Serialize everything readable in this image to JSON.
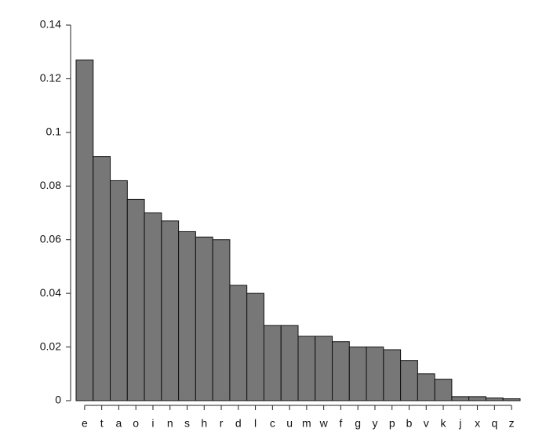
{
  "chart_data": {
    "type": "bar",
    "categories": [
      "e",
      "t",
      "a",
      "o",
      "i",
      "n",
      "s",
      "h",
      "r",
      "d",
      "l",
      "c",
      "u",
      "m",
      "w",
      "f",
      "g",
      "y",
      "p",
      "b",
      "v",
      "k",
      "j",
      "x",
      "q",
      "z"
    ],
    "values": [
      0.127,
      0.091,
      0.082,
      0.075,
      0.07,
      0.067,
      0.063,
      0.061,
      0.06,
      0.043,
      0.04,
      0.028,
      0.028,
      0.024,
      0.024,
      0.022,
      0.02,
      0.02,
      0.019,
      0.015,
      0.01,
      0.008,
      0.0015,
      0.0015,
      0.001,
      0.0007
    ],
    "color": "#777777",
    "ylim": [
      0,
      0.14
    ],
    "yticks": [
      0,
      0.02,
      0.04,
      0.06,
      0.08,
      0.1,
      0.12,
      0.14
    ]
  }
}
